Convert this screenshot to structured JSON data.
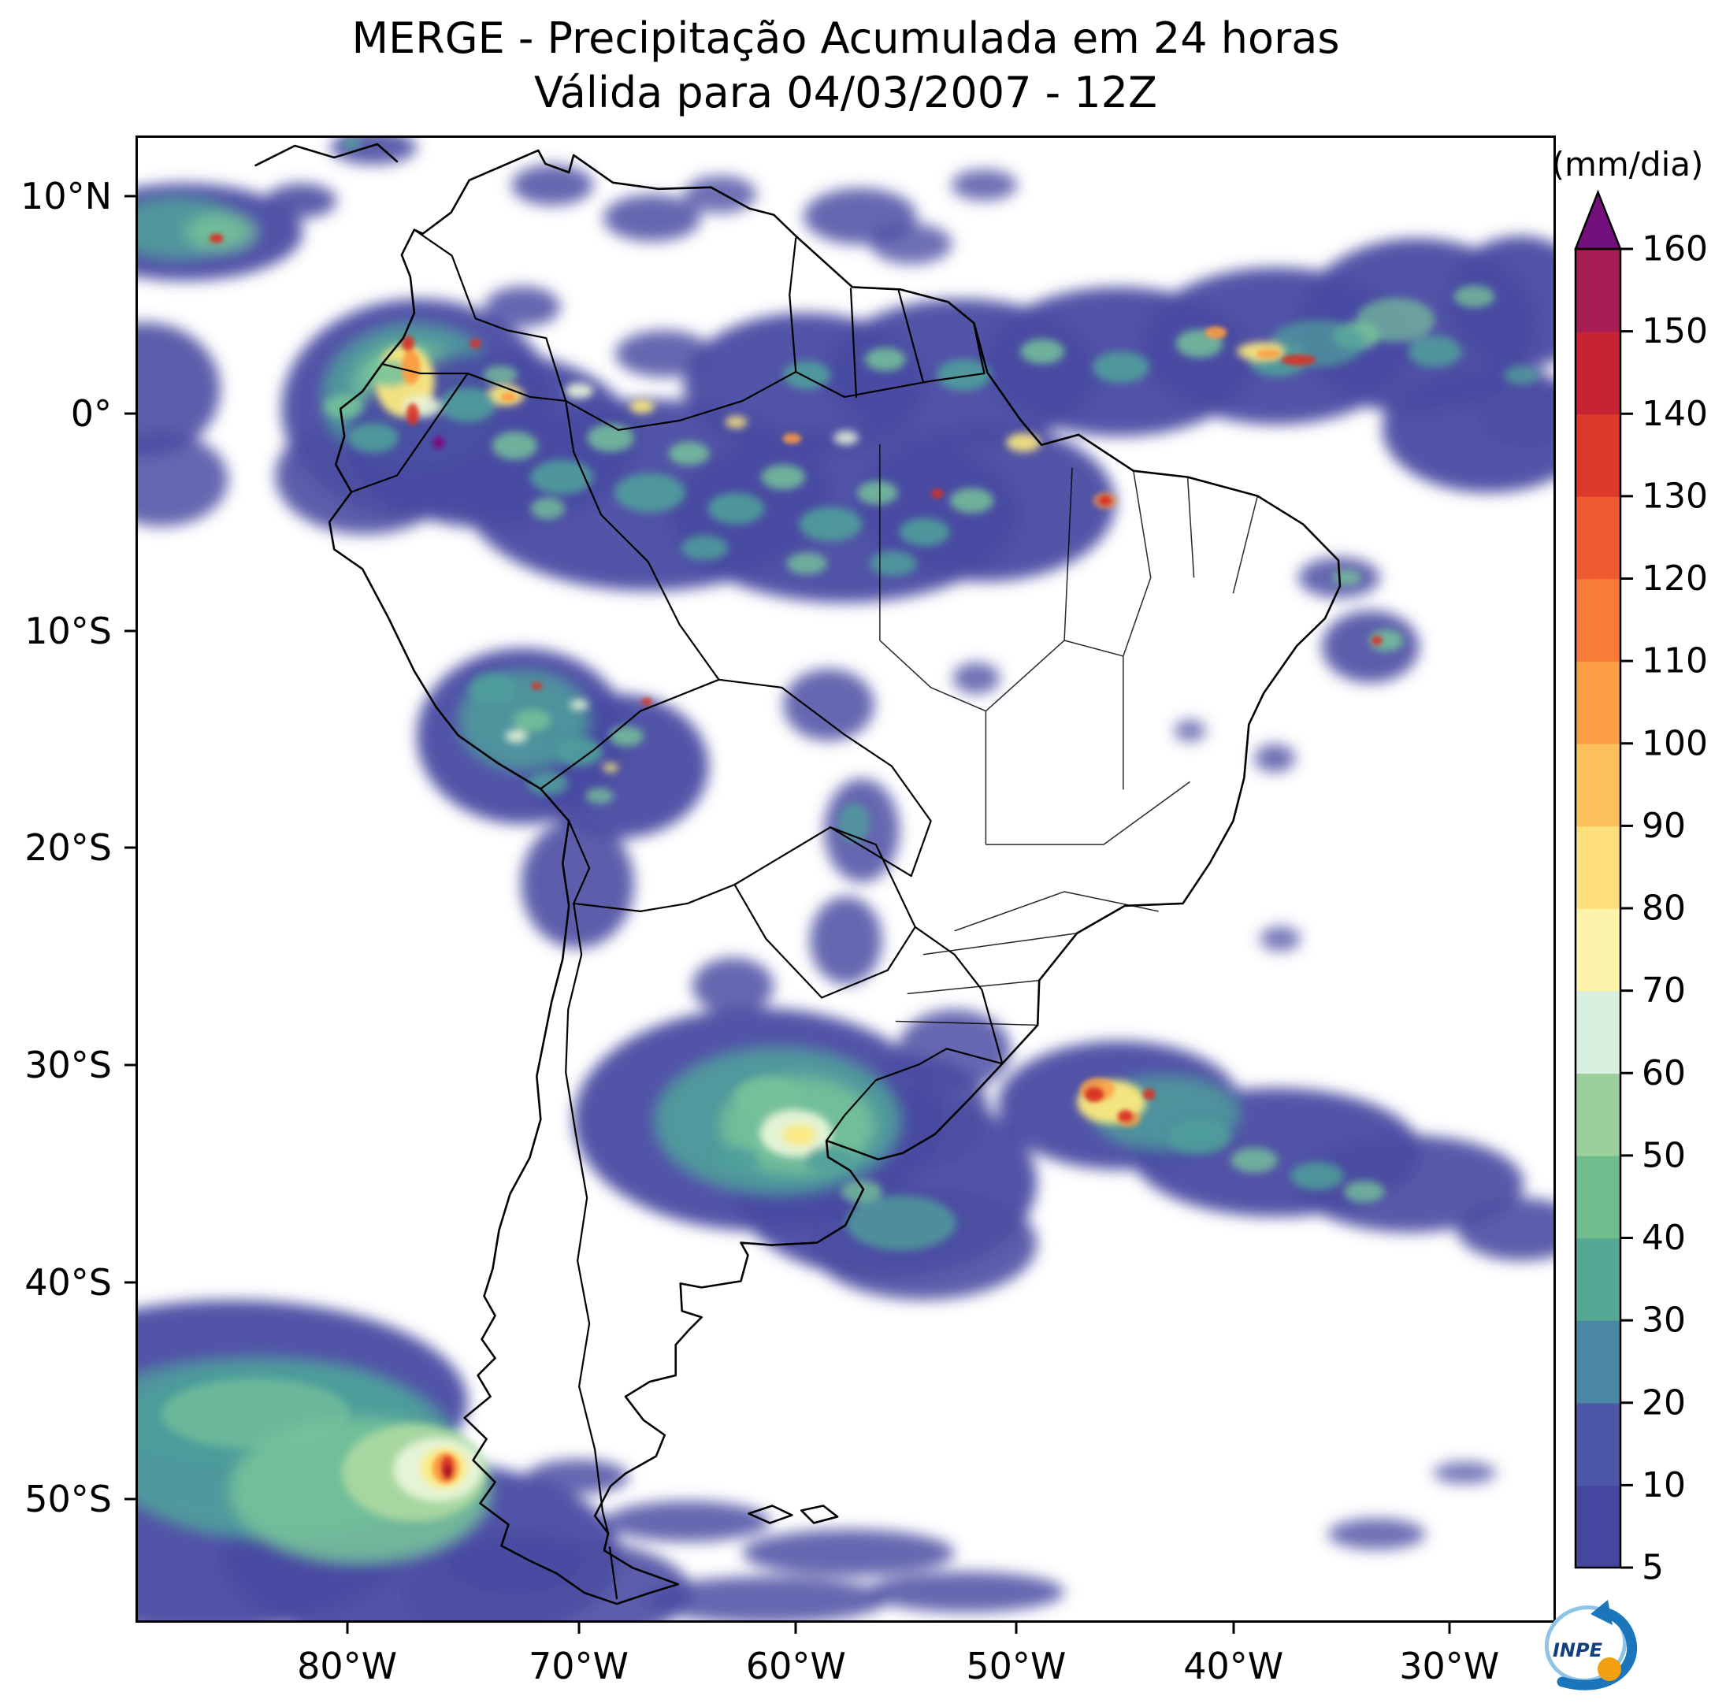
{
  "title": {
    "line1": "MERGE - Precipitação Acumulada em 24 horas",
    "line2": "Válida para 04/03/2007 - 12Z"
  },
  "axes": {
    "y_ticks": [
      {
        "label": "10°N",
        "pos": 4.1
      },
      {
        "label": "0°",
        "pos": 18.7
      },
      {
        "label": "10°S",
        "pos": 33.3
      },
      {
        "label": "20°S",
        "pos": 47.9
      },
      {
        "label": "30°S",
        "pos": 62.5
      },
      {
        "label": "40°S",
        "pos": 77.1
      },
      {
        "label": "50°S",
        "pos": 91.7
      }
    ],
    "x_ticks": [
      {
        "label": "80°W",
        "pos": 14.9
      },
      {
        "label": "70°W",
        "pos": 31.2
      },
      {
        "label": "60°W",
        "pos": 46.5
      },
      {
        "label": "50°W",
        "pos": 62.0
      },
      {
        "label": "40°W",
        "pos": 77.3
      },
      {
        "label": "30°W",
        "pos": 92.5
      }
    ]
  },
  "colorbar": {
    "unit": "(mm/dia)",
    "levels": [
      160,
      150,
      140,
      130,
      120,
      110,
      100,
      90,
      80,
      70,
      60,
      50,
      40,
      30,
      20,
      10,
      5
    ],
    "segment_colors_bottom_to_top": [
      "#45479f",
      "#4c58a7",
      "#4a87a6",
      "#57a795",
      "#6fbd8d",
      "#9bcf9b",
      "#d9efdf",
      "#fdf3aa",
      "#fedf7b",
      "#fdc15c",
      "#fb9d43",
      "#f87b38",
      "#ef5a31",
      "#dd392b",
      "#c52435",
      "#a61e54"
    ],
    "extend_color": "#73107b"
  },
  "palette": {
    "blue": "#4a4ca2",
    "teal": "#4f9f9b",
    "green": "#76c29a",
    "lgreen": "#aad8a0",
    "pale": "#e9f5d8",
    "yellow": "#fce97e",
    "orange": "#fb9b42",
    "red": "#d93226",
    "dred": "#a31226",
    "purple": "#7c1080"
  },
  "logo": {
    "text": "INPE"
  }
}
